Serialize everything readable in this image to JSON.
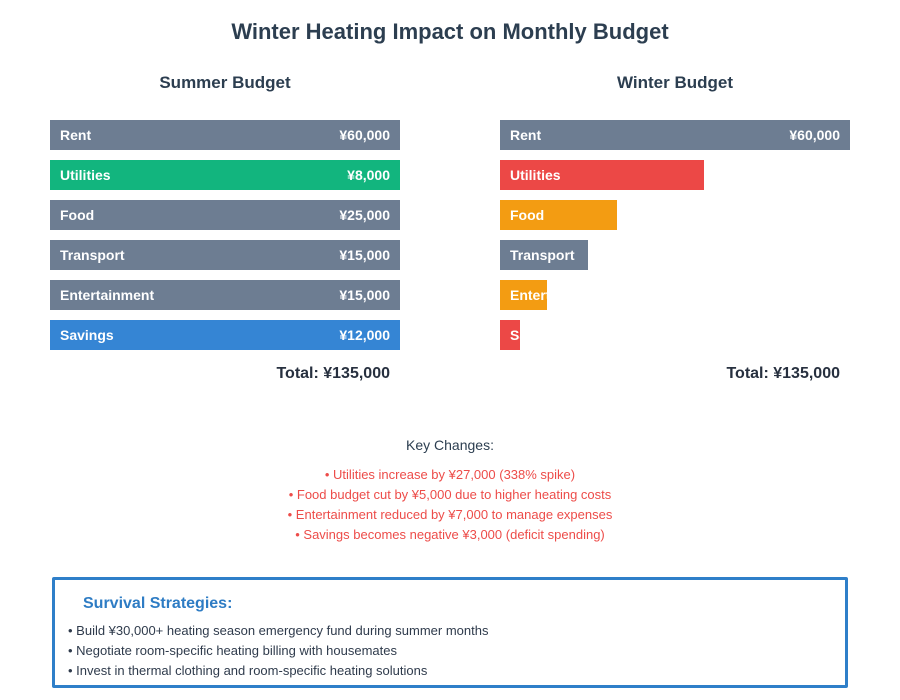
{
  "title": "Winter Heating Impact on Monthly Budget",
  "colors": {
    "slate": "#6d7d92",
    "green": "#12b57e",
    "blue": "#3585d4",
    "red": "#ec4846",
    "orange": "#f39c12",
    "dark_text": "#2c3e50",
    "changes_text": "#ed4c49",
    "box_border": "#2f7fc9",
    "box_heading": "#2e7cc4"
  },
  "columns": [
    {
      "header": "Summer Budget",
      "total": "Total: ¥135,000",
      "bars": [
        {
          "label": "Rent",
          "value": "¥60,000",
          "color": "#6d7d92",
          "width_pct": 100
        },
        {
          "label": "Utilities",
          "value": "¥8,000",
          "color": "#12b57e",
          "width_pct": 100
        },
        {
          "label": "Food",
          "value": "¥25,000",
          "color": "#6d7d92",
          "width_pct": 100
        },
        {
          "label": "Transport",
          "value": "¥15,000",
          "color": "#6d7d92",
          "width_pct": 100
        },
        {
          "label": "Entertainment",
          "value": "¥15,000",
          "color": "#6d7d92",
          "width_pct": 100
        },
        {
          "label": "Savings",
          "value": "¥12,000",
          "color": "#3585d4",
          "width_pct": 100
        }
      ]
    },
    {
      "header": "Winter Budget",
      "total": "Total: ¥135,000",
      "bars": [
        {
          "label": "Rent",
          "value": "¥60,000",
          "color": "#6d7d92",
          "width_pct": 100
        },
        {
          "label": "Utilities",
          "value": "",
          "color": "#ec4846",
          "width_pct": 58.33
        },
        {
          "label": "Food",
          "value": "",
          "color": "#f39c12",
          "width_pct": 33.33
        },
        {
          "label": "Transport",
          "value": "",
          "color": "#6d7d92",
          "width_pct": 25
        },
        {
          "label": "Entertainment",
          "value": "",
          "color": "#f39c12",
          "width_pct": 13.33
        },
        {
          "label": "Savings",
          "value": "",
          "color": "#ec4846",
          "width_pct": 5
        }
      ]
    }
  ],
  "key_changes": {
    "heading": "Key Changes:",
    "items": [
      "• Utilities increase by ¥27,000 (338% spike)",
      "• Food budget cut by ¥5,000 due to higher heating costs",
      "• Entertainment reduced by ¥7,000 to manage expenses",
      "• Savings becomes negative ¥3,000 (deficit spending)"
    ]
  },
  "survival": {
    "heading": "Survival Strategies:",
    "items": [
      "• Build ¥30,000+ heating season emergency fund during summer months",
      "• Negotiate room-specific heating billing with housemates",
      "• Invest in thermal clothing and room-specific heating solutions"
    ]
  },
  "chart_data": [
    {
      "type": "bar",
      "orientation": "horizontal",
      "title": "Summer Budget",
      "categories": [
        "Rent",
        "Utilities",
        "Food",
        "Transport",
        "Entertainment",
        "Savings"
      ],
      "values": [
        60000,
        8000,
        25000,
        15000,
        15000,
        12000
      ],
      "total": 135000,
      "currency": "¥",
      "bar_colors": [
        "#6d7d92",
        "#12b57e",
        "#6d7d92",
        "#6d7d92",
        "#6d7d92",
        "#3585d4"
      ],
      "layout": "all bars drawn full column width; value labels right-aligned inside bars"
    },
    {
      "type": "bar",
      "orientation": "horizontal",
      "title": "Winter Budget",
      "categories": [
        "Rent",
        "Utilities",
        "Food",
        "Transport",
        "Entertainment",
        "Savings"
      ],
      "values": [
        60000,
        35000,
        20000,
        15000,
        8000,
        -3000
      ],
      "total": 135000,
      "currency": "¥",
      "bar_colors": [
        "#6d7d92",
        "#ec4846",
        "#f39c12",
        "#6d7d92",
        "#f39c12",
        "#ec4846"
      ],
      "layout": "bar width proportional to |value| with 60000 = full width; only Rent shows a value label; labels clipped by bar width"
    }
  ]
}
